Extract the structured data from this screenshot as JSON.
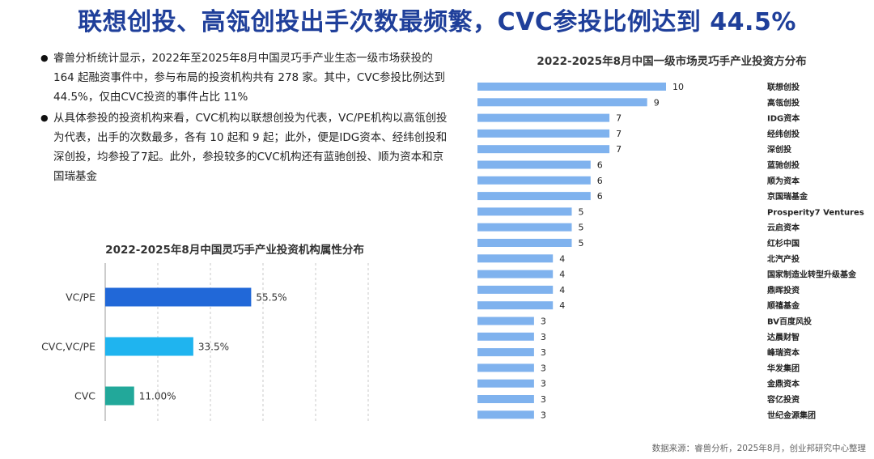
{
  "page": {
    "title": "联想创投、高瓴创投出手次数最频繁，CVC参投比例达到 44.5%",
    "bullets": [
      "睿兽分析统计显示，2022年至2025年8月中国灵巧手产业生态一级市场获投的 164 起融资事件中，参与布局的投资机构共有 278 家。其中，CVC参投比例达到 44.5%，仅由CVC投资的事件占比 11%",
      "从具体参投的投资机构来看，CVC机构以联想创投为代表，VC/PE机构以高瓴创投为代表，出手的次数最多，各有 10 起和 9 起；此外，便是IDG资本、经纬创投和深创投，均参投了7起。此外，参投较多的CVC机构还有蓝驰创投、顺为资本和京国瑞基金"
    ],
    "source": "数据来源：睿兽分析，2025年8月，创业邦研究中心整理"
  },
  "colors": {
    "title": "#1f3f9a",
    "vcpe": "#2168d8",
    "cvc_vcpe": "#1fb4ef",
    "cvc": "#22a89a",
    "investor_bar": "#7fb2ee"
  },
  "chart_data": [
    {
      "type": "bar",
      "orientation": "horizontal",
      "title": "2022-2025年8月中国灵巧手产业投资机构属性分布",
      "categories": [
        "VC/PE",
        "CVC,VC/PE",
        "CVC"
      ],
      "values": [
        55.5,
        33.5,
        11.0
      ],
      "value_labels": [
        "55.5%",
        "33.5%",
        "11.00%"
      ],
      "xlim": [
        0,
        100
      ],
      "grid": "vertical dashed"
    },
    {
      "type": "bar",
      "orientation": "horizontal",
      "title": "2022-2025年8月中国一级市场灵巧手产业投资方分布",
      "categories": [
        "联想创投",
        "高瓴创投",
        "IDG资本",
        "经纬创投",
        "深创投",
        "蓝驰创投",
        "顺为资本",
        "京国瑞基金",
        "Prosperity7 Ventures",
        "云启资本",
        "红杉中国",
        "北汽产投",
        "国家制造业转型升级基金",
        "鼎晖投资",
        "顺禧基金",
        "BV百度风投",
        "达晨财智",
        "峰瑞资本",
        "华发集团",
        "金鼎资本",
        "容亿投资",
        "世纪金源集团"
      ],
      "values": [
        10,
        9,
        7,
        7,
        7,
        6,
        6,
        6,
        5,
        5,
        5,
        4,
        4,
        4,
        4,
        3,
        3,
        3,
        3,
        3,
        3,
        3
      ],
      "category_label_position": "right"
    }
  ]
}
